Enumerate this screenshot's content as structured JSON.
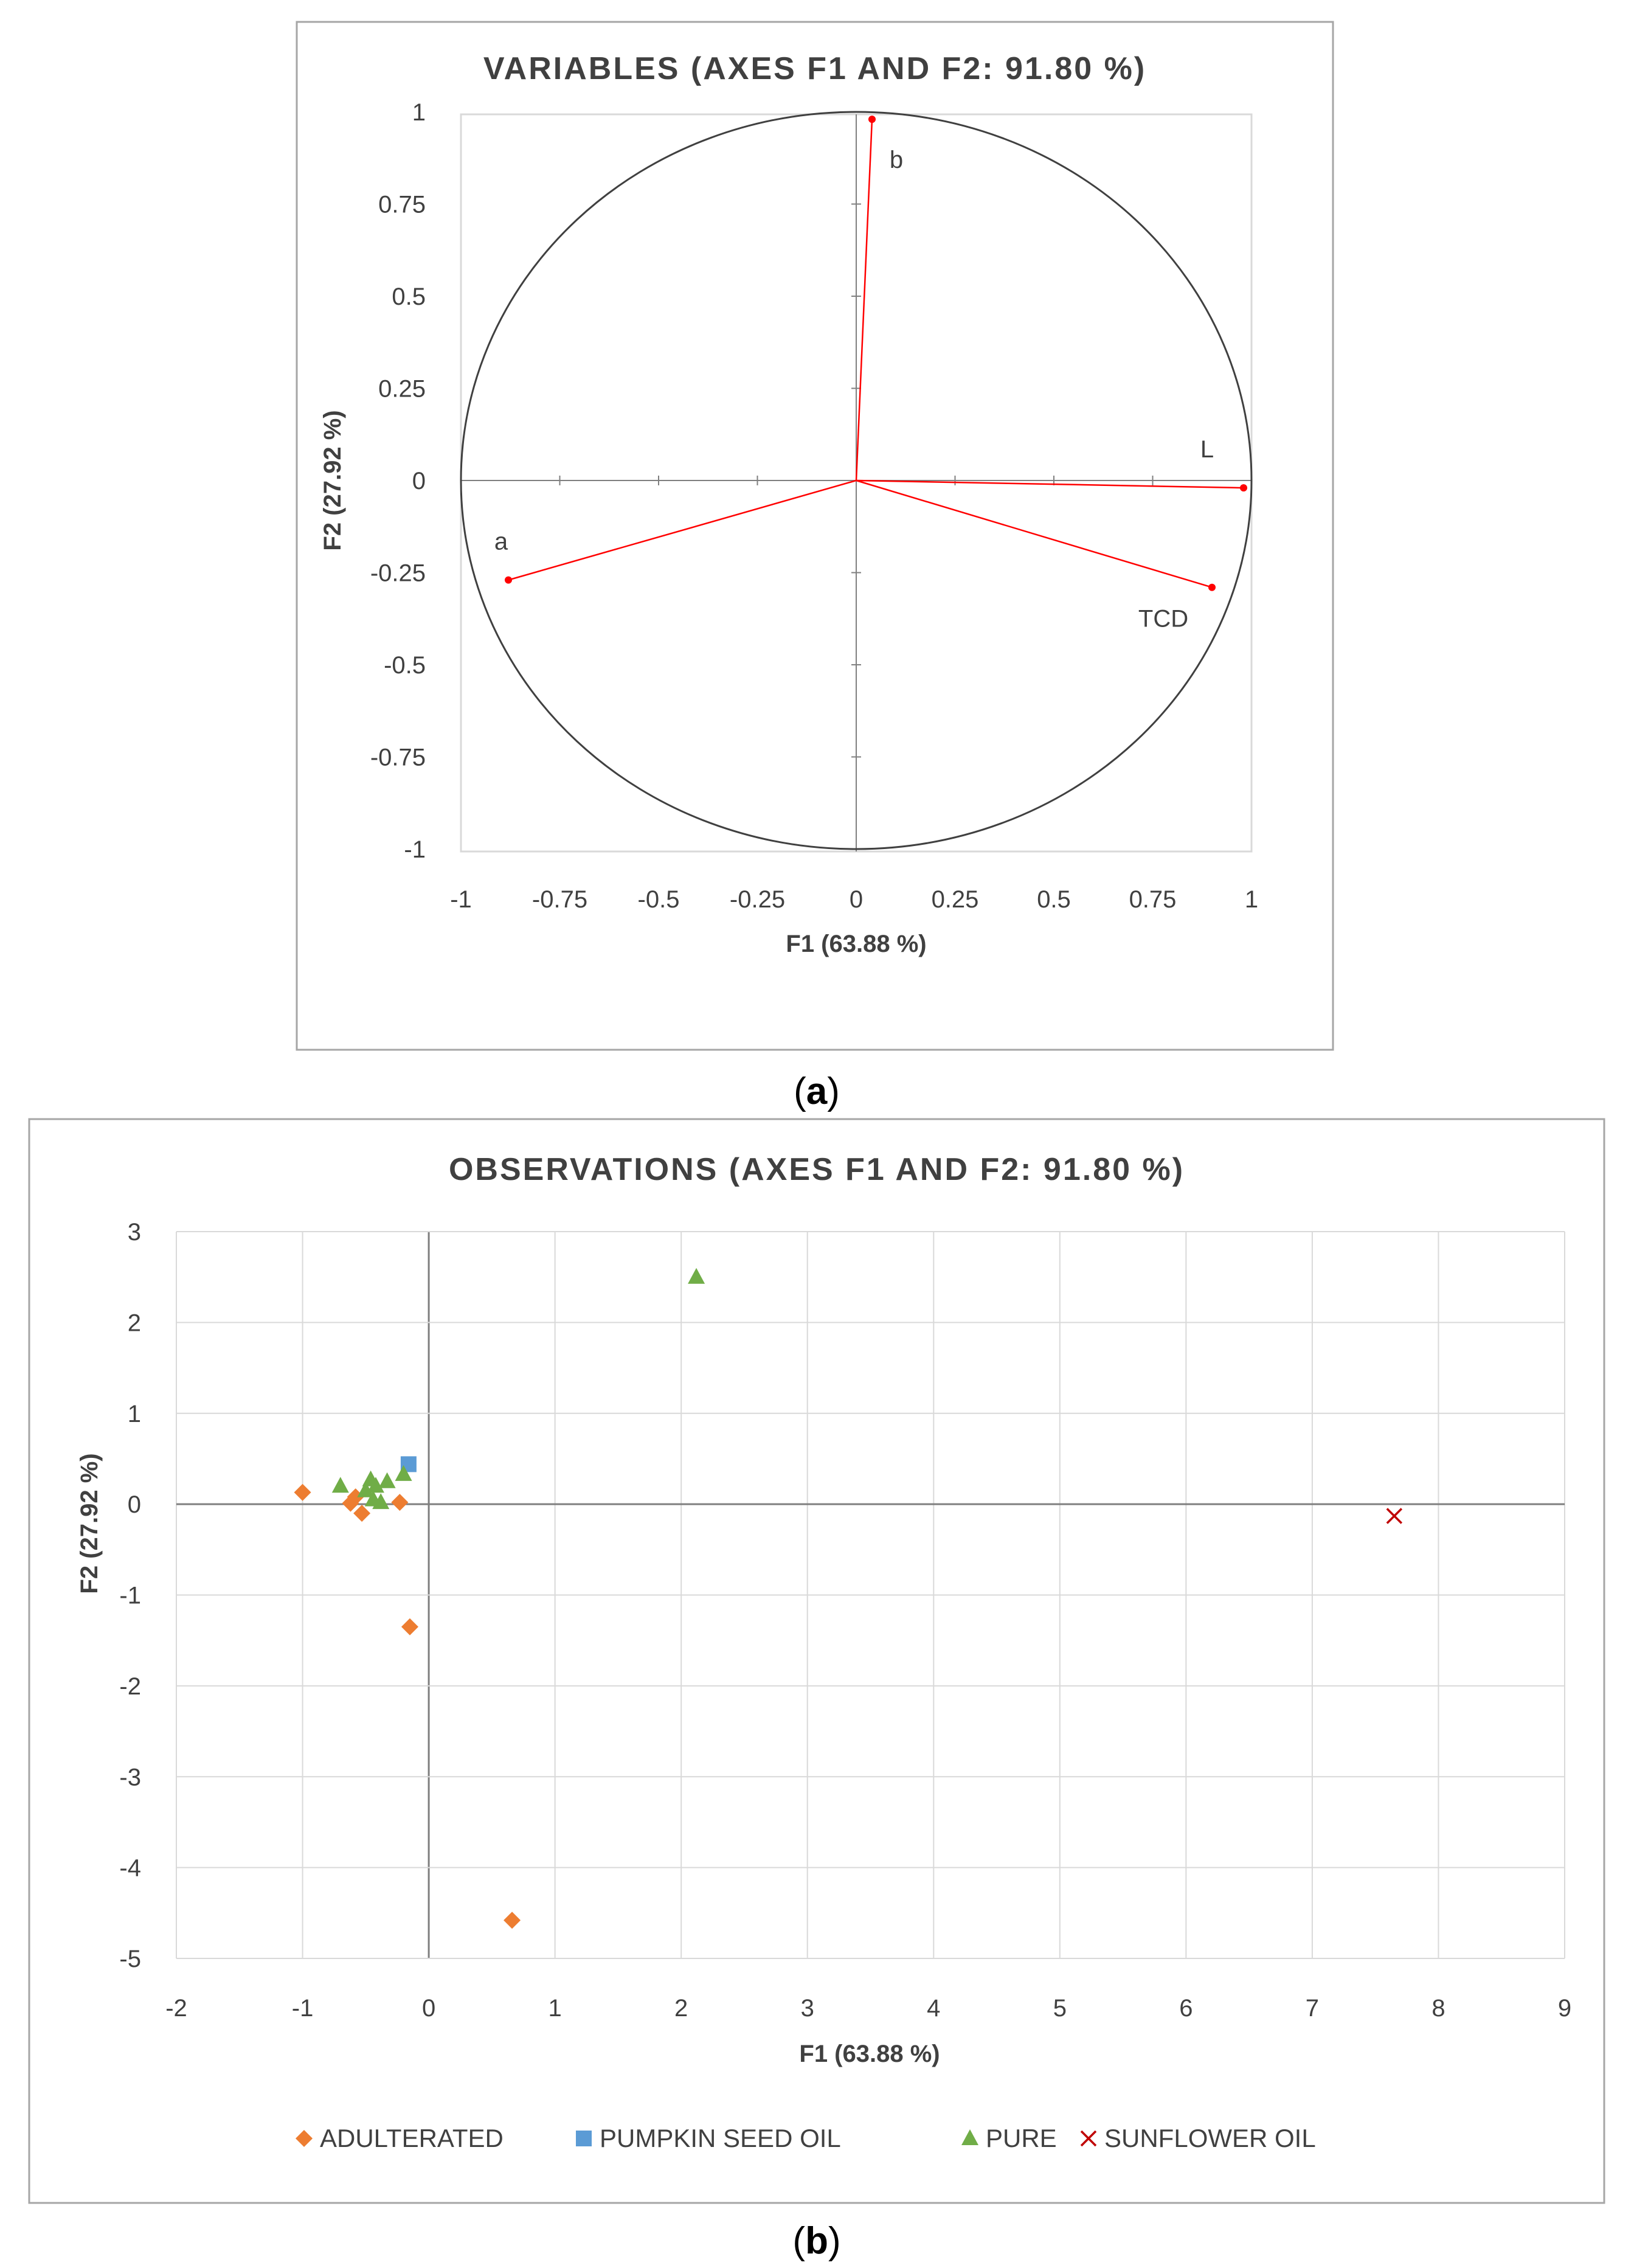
{
  "panels": [
    {
      "caption_open": "(",
      "caption_letter": "a",
      "caption_close": ")"
    },
    {
      "caption_open": "(",
      "caption_letter": "b",
      "caption_close": ")"
    }
  ],
  "colors": {
    "loading_line": "#ff0000",
    "circle": "#404040",
    "axis": "#7f7f7f",
    "grid": "#d9d9d9",
    "frame": "#a6a6a6",
    "text": "#000000",
    "adulterated": "#ed7d31",
    "pumpkin_seed_oil": "#5b9bd5",
    "pure": "#70ad47",
    "sunflower_oil": "#c00000"
  },
  "chart_data": [
    {
      "type": "scatter",
      "subtype": "correlation-circle",
      "title": "VARIABLES (AXES F1 AND F2: 91.80 %)",
      "xlabel": "F1 (63.88 %)",
      "ylabel": "F2 (27.92 %)",
      "xlim": [
        -1,
        1
      ],
      "ylim": [
        -1,
        1
      ],
      "xticks": [
        "-1",
        "-0.75",
        "-0.5",
        "-0.25",
        "0",
        "0.25",
        "0.5",
        "0.75",
        "1"
      ],
      "yticks": [
        "1",
        "0.75",
        "0.5",
        "0.25",
        "0",
        "-0.25",
        "-0.5",
        "-0.75",
        "-1"
      ],
      "grid": false,
      "unit_circle": true,
      "series": [
        {
          "name": "b",
          "x": 0.04,
          "y": 0.98
        },
        {
          "name": "L",
          "x": 0.98,
          "y": -0.02
        },
        {
          "name": "TCD",
          "x": 0.9,
          "y": -0.29
        },
        {
          "name": "a",
          "x": -0.88,
          "y": -0.27
        }
      ]
    },
    {
      "type": "scatter",
      "title": "OBSERVATIONS (AXES F1 AND F2: 91.80 %)",
      "xlabel": "F1 (63.88 %)",
      "ylabel": "F2 (27.92 %)",
      "xlim": [
        -2,
        9
      ],
      "ylim": [
        -5,
        3
      ],
      "xticks": [
        "-2",
        "-1",
        "0",
        "1",
        "2",
        "3",
        "4",
        "5",
        "6",
        "7",
        "8",
        "9"
      ],
      "yticks": [
        "3",
        "2",
        "1",
        "0",
        "-1",
        "-2",
        "-3",
        "-4",
        "-5"
      ],
      "grid": true,
      "legend": "bottom",
      "series": [
        {
          "name": "ADULTERATED",
          "marker": "diamond",
          "points": [
            [
              -1.0,
              0.13
            ],
            [
              -0.62,
              0.01
            ],
            [
              -0.58,
              0.08
            ],
            [
              -0.53,
              -0.1
            ],
            [
              -0.23,
              0.02
            ],
            [
              -0.15,
              -1.35
            ],
            [
              0.66,
              -4.58
            ]
          ]
        },
        {
          "name": "PUMPKIN SEED OIL",
          "marker": "square",
          "points": [
            [
              -0.16,
              0.44
            ]
          ]
        },
        {
          "name": "PURE",
          "marker": "triangle",
          "points": [
            [
              -0.7,
              0.2
            ],
            [
              -0.5,
              0.15
            ],
            [
              -0.46,
              0.27
            ],
            [
              -0.44,
              0.05
            ],
            [
              -0.42,
              0.2
            ],
            [
              -0.38,
              0.02
            ],
            [
              -0.33,
              0.25
            ],
            [
              -0.2,
              0.33
            ],
            [
              2.12,
              2.5
            ]
          ]
        },
        {
          "name": "SUNFLOWER OIL",
          "marker": "x",
          "points": [
            [
              7.65,
              -0.13
            ]
          ]
        }
      ]
    }
  ]
}
